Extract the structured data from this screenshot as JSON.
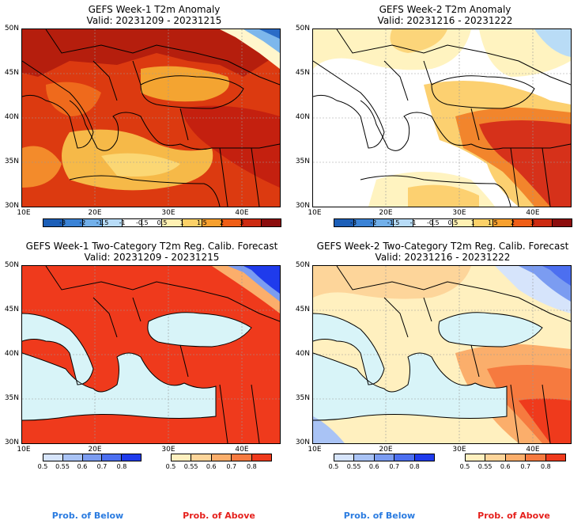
{
  "panels": {
    "tl": {
      "title": "GEFS Week-1 T2m Anomaly",
      "valid": "Valid: 20231209 - 20231215"
    },
    "tr": {
      "title": "GEFS Week-2 T2m Anomaly",
      "valid": "Valid: 20231216 - 20231222"
    },
    "bl": {
      "title": "GEFS Week-1 Two-Category T2m Reg. Calib. Forecast",
      "valid": "Valid: 20231209 - 20231215"
    },
    "br": {
      "title": "GEFS Week-2 Two-Category T2m Reg. Calib. Forecast",
      "valid": "Valid: 20231216 - 20231222"
    }
  },
  "lat_labels": [
    "50N",
    "45N",
    "40N",
    "35N",
    "30N"
  ],
  "lon_labels": [
    "10E",
    "20E",
    "30E",
    "40E"
  ],
  "anomaly_scale": {
    "labels": [
      "-3",
      "-2",
      "-1.5",
      "-1",
      "-0.5",
      "0.5",
      "1",
      "1.5",
      "2",
      "3"
    ],
    "colors": [
      "#1c5fb8",
      "#3b83d6",
      "#72b0ea",
      "#b8dcf7",
      "#ffffff",
      "#ffffff",
      "#fff1b3",
      "#fcd168",
      "#f7a02e",
      "#ef5e16",
      "#cc2a10",
      "#8c0d0d"
    ]
  },
  "below_scale": {
    "labels": [
      "0.5",
      "0.55",
      "0.6",
      "0.7",
      "0.8"
    ],
    "colors": [
      "#d6e4fb",
      "#a9c3f5",
      "#7b9cf1",
      "#4c6ff0",
      "#1f3bec"
    ]
  },
  "above_scale": {
    "labels": [
      "0.5",
      "0.55",
      "0.6",
      "0.7",
      "0.8"
    ],
    "colors": [
      "#fff0bf",
      "#fdd59a",
      "#fbae6b",
      "#f67a3f",
      "#ef3a1c"
    ]
  },
  "prob_below": "Prob. of Below",
  "prob_above": "Prob. of Above",
  "colors": {
    "sea": "#d8f4f8",
    "coast": "#000000",
    "grid": "#999999"
  }
}
